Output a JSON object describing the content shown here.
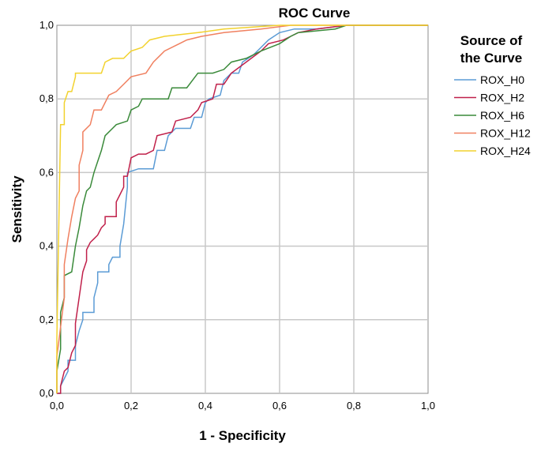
{
  "chart_data": {
    "type": "line",
    "title": "ROC Curve",
    "xlabel": "1 - Specificity",
    "ylabel": "Sensitivity",
    "xlim": [
      0,
      1
    ],
    "ylim": [
      0,
      1
    ],
    "grid": true,
    "x_ticks": [
      "0,0",
      "0,2",
      "0,4",
      "0,6",
      "0,8",
      "1,0"
    ],
    "y_ticks": [
      "0,0",
      "0,2",
      "0,4",
      "0,6",
      "0,8",
      "1,0"
    ],
    "legend_title_line1": "Source of",
    "legend_title_line2": "the Curve",
    "legend_placement": "right",
    "series": [
      {
        "name": "ROX_H0",
        "color": "#5b9bd5",
        "points": [
          [
            0,
            0
          ],
          [
            0.01,
            0
          ],
          [
            0.01,
            0.02
          ],
          [
            0.02,
            0.04
          ],
          [
            0.03,
            0.06
          ],
          [
            0.03,
            0.09
          ],
          [
            0.05,
            0.09
          ],
          [
            0.05,
            0.13
          ],
          [
            0.06,
            0.17
          ],
          [
            0.07,
            0.2
          ],
          [
            0.07,
            0.22
          ],
          [
            0.1,
            0.22
          ],
          [
            0.1,
            0.26
          ],
          [
            0.11,
            0.3
          ],
          [
            0.11,
            0.33
          ],
          [
            0.14,
            0.33
          ],
          [
            0.14,
            0.35
          ],
          [
            0.15,
            0.37
          ],
          [
            0.17,
            0.37
          ],
          [
            0.17,
            0.4
          ],
          [
            0.18,
            0.46
          ],
          [
            0.19,
            0.56
          ],
          [
            0.19,
            0.6
          ],
          [
            0.22,
            0.61
          ],
          [
            0.26,
            0.61
          ],
          [
            0.27,
            0.66
          ],
          [
            0.29,
            0.66
          ],
          [
            0.3,
            0.7
          ],
          [
            0.32,
            0.72
          ],
          [
            0.36,
            0.72
          ],
          [
            0.37,
            0.75
          ],
          [
            0.39,
            0.75
          ],
          [
            0.4,
            0.79
          ],
          [
            0.41,
            0.8
          ],
          [
            0.44,
            0.81
          ],
          [
            0.45,
            0.85
          ],
          [
            0.47,
            0.87
          ],
          [
            0.49,
            0.87
          ],
          [
            0.5,
            0.9
          ],
          [
            0.53,
            0.92
          ],
          [
            0.55,
            0.94
          ],
          [
            0.57,
            0.96
          ],
          [
            0.6,
            0.98
          ],
          [
            0.64,
            0.99
          ],
          [
            0.65,
            0.99
          ],
          [
            0.7,
            0.99
          ],
          [
            0.78,
            1
          ],
          [
            0.88,
            1
          ],
          [
            1,
            1
          ]
        ]
      },
      {
        "name": "ROX_H2",
        "color": "#c0204a",
        "points": [
          [
            0,
            0
          ],
          [
            0.01,
            0
          ],
          [
            0.01,
            0.02
          ],
          [
            0.02,
            0.06
          ],
          [
            0.03,
            0.07
          ],
          [
            0.04,
            0.11
          ],
          [
            0.05,
            0.13
          ],
          [
            0.05,
            0.19
          ],
          [
            0.06,
            0.26
          ],
          [
            0.07,
            0.33
          ],
          [
            0.08,
            0.36
          ],
          [
            0.08,
            0.39
          ],
          [
            0.09,
            0.41
          ],
          [
            0.1,
            0.42
          ],
          [
            0.11,
            0.43
          ],
          [
            0.12,
            0.45
          ],
          [
            0.13,
            0.46
          ],
          [
            0.13,
            0.48
          ],
          [
            0.16,
            0.48
          ],
          [
            0.16,
            0.52
          ],
          [
            0.17,
            0.54
          ],
          [
            0.18,
            0.56
          ],
          [
            0.18,
            0.59
          ],
          [
            0.19,
            0.59
          ],
          [
            0.2,
            0.64
          ],
          [
            0.22,
            0.65
          ],
          [
            0.24,
            0.65
          ],
          [
            0.26,
            0.66
          ],
          [
            0.27,
            0.7
          ],
          [
            0.31,
            0.71
          ],
          [
            0.32,
            0.74
          ],
          [
            0.36,
            0.75
          ],
          [
            0.38,
            0.77
          ],
          [
            0.39,
            0.79
          ],
          [
            0.42,
            0.8
          ],
          [
            0.43,
            0.84
          ],
          [
            0.45,
            0.84
          ],
          [
            0.47,
            0.87
          ],
          [
            0.51,
            0.9
          ],
          [
            0.55,
            0.93
          ],
          [
            0.57,
            0.95
          ],
          [
            0.61,
            0.96
          ],
          [
            0.63,
            0.97
          ],
          [
            0.65,
            0.98
          ],
          [
            0.7,
            0.99
          ],
          [
            0.78,
            1
          ],
          [
            1,
            1
          ]
        ]
      },
      {
        "name": "ROX_H6",
        "color": "#3a8a3a",
        "points": [
          [
            0,
            0
          ],
          [
            0,
            0.06
          ],
          [
            0.01,
            0.12
          ],
          [
            0.01,
            0.22
          ],
          [
            0.02,
            0.26
          ],
          [
            0.02,
            0.32
          ],
          [
            0.04,
            0.33
          ],
          [
            0.05,
            0.4
          ],
          [
            0.06,
            0.45
          ],
          [
            0.07,
            0.51
          ],
          [
            0.08,
            0.55
          ],
          [
            0.09,
            0.56
          ],
          [
            0.1,
            0.6
          ],
          [
            0.11,
            0.63
          ],
          [
            0.12,
            0.66
          ],
          [
            0.13,
            0.7
          ],
          [
            0.15,
            0.72
          ],
          [
            0.16,
            0.73
          ],
          [
            0.19,
            0.74
          ],
          [
            0.2,
            0.77
          ],
          [
            0.22,
            0.78
          ],
          [
            0.23,
            0.8
          ],
          [
            0.3,
            0.8
          ],
          [
            0.31,
            0.83
          ],
          [
            0.35,
            0.83
          ],
          [
            0.38,
            0.87
          ],
          [
            0.42,
            0.87
          ],
          [
            0.45,
            0.88
          ],
          [
            0.47,
            0.9
          ],
          [
            0.51,
            0.91
          ],
          [
            0.55,
            0.93
          ],
          [
            0.6,
            0.95
          ],
          [
            0.63,
            0.97
          ],
          [
            0.65,
            0.98
          ],
          [
            0.75,
            0.99
          ],
          [
            0.78,
            1
          ],
          [
            1,
            1
          ]
        ]
      },
      {
        "name": "ROX_H12",
        "color": "#f08060",
        "points": [
          [
            0,
            0
          ],
          [
            0,
            0.1
          ],
          [
            0.01,
            0.18
          ],
          [
            0.02,
            0.26
          ],
          [
            0.02,
            0.35
          ],
          [
            0.03,
            0.42
          ],
          [
            0.04,
            0.48
          ],
          [
            0.05,
            0.53
          ],
          [
            0.06,
            0.55
          ],
          [
            0.06,
            0.62
          ],
          [
            0.07,
            0.66
          ],
          [
            0.07,
            0.71
          ],
          [
            0.09,
            0.73
          ],
          [
            0.1,
            0.77
          ],
          [
            0.12,
            0.77
          ],
          [
            0.14,
            0.81
          ],
          [
            0.16,
            0.82
          ],
          [
            0.18,
            0.84
          ],
          [
            0.2,
            0.86
          ],
          [
            0.24,
            0.87
          ],
          [
            0.26,
            0.9
          ],
          [
            0.28,
            0.92
          ],
          [
            0.29,
            0.93
          ],
          [
            0.33,
            0.95
          ],
          [
            0.35,
            0.96
          ],
          [
            0.39,
            0.97
          ],
          [
            0.45,
            0.98
          ],
          [
            0.55,
            0.99
          ],
          [
            0.63,
            1
          ],
          [
            1,
            1
          ]
        ]
      },
      {
        "name": "ROX_H24",
        "color": "#f2d22e",
        "points": [
          [
            0,
            0
          ],
          [
            0,
            0.15
          ],
          [
            0.01,
            0.73
          ],
          [
            0.02,
            0.73
          ],
          [
            0.02,
            0.79
          ],
          [
            0.03,
            0.82
          ],
          [
            0.04,
            0.82
          ],
          [
            0.05,
            0.86
          ],
          [
            0.05,
            0.87
          ],
          [
            0.08,
            0.87
          ],
          [
            0.12,
            0.87
          ],
          [
            0.13,
            0.9
          ],
          [
            0.15,
            0.91
          ],
          [
            0.18,
            0.91
          ],
          [
            0.2,
            0.93
          ],
          [
            0.23,
            0.94
          ],
          [
            0.25,
            0.96
          ],
          [
            0.29,
            0.97
          ],
          [
            0.38,
            0.98
          ],
          [
            0.45,
            0.99
          ],
          [
            0.6,
            1
          ],
          [
            1,
            1
          ]
        ]
      }
    ]
  }
}
